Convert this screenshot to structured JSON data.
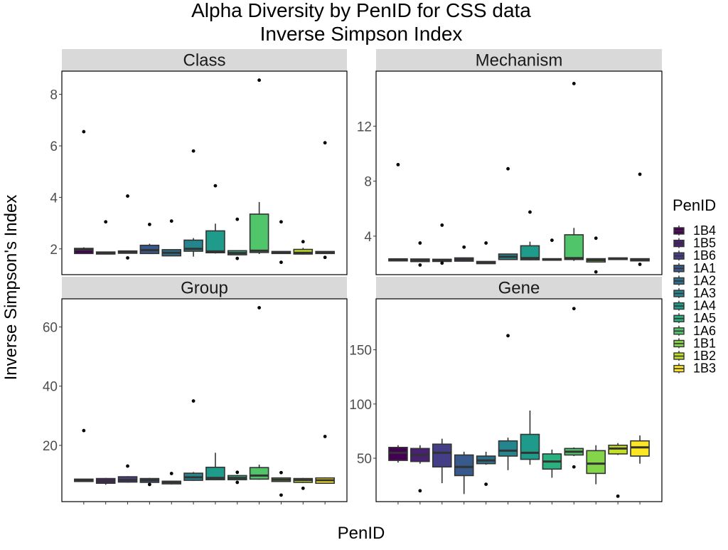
{
  "title_line1": "Alpha Diversity by PenID for CSS data",
  "title_line2": "Inverse Simpson Index",
  "xlabel": "PenID",
  "ylabel": "Inverse Simpson's Index",
  "legend_title": "PenID",
  "chart_data": {
    "type": "boxplot",
    "categories": [
      "1B4",
      "1B5",
      "1B6",
      "1A1",
      "1A2",
      "1A3",
      "1A4",
      "1A5",
      "1A6",
      "1B1",
      "1B2",
      "1B3"
    ],
    "colors": [
      "#440154",
      "#482173",
      "#433E85",
      "#38598C",
      "#2D708E",
      "#25858E",
      "#1E9B8A",
      "#2BB07F",
      "#51C56A",
      "#85D54A",
      "#C2DF23",
      "#FDE725"
    ],
    "legend_position": "right",
    "grid": false,
    "panels": [
      {
        "name": "Class",
        "ylim": [
          1.0,
          8.9
        ],
        "yticks": [
          2,
          4,
          6,
          8
        ],
        "boxes": [
          {
            "q1": 1.82,
            "median": 1.96,
            "q3": 2.02,
            "wlo": 1.8,
            "whi": 2.06,
            "outliers": [
              6.55
            ]
          },
          {
            "q1": 1.8,
            "median": 1.84,
            "q3": 1.88,
            "wlo": 1.79,
            "whi": 1.89,
            "outliers": [
              3.05
            ]
          },
          {
            "q1": 1.83,
            "median": 1.87,
            "q3": 1.92,
            "wlo": 1.82,
            "whi": 1.93,
            "outliers": [
              4.05,
              1.65
            ]
          },
          {
            "q1": 1.82,
            "median": 1.95,
            "q3": 2.14,
            "wlo": 1.8,
            "whi": 2.2,
            "outliers": [
              2.95
            ]
          },
          {
            "q1": 1.73,
            "median": 1.85,
            "q3": 1.97,
            "wlo": 1.72,
            "whi": 1.98,
            "outliers": [
              3.08
            ]
          },
          {
            "q1": 1.91,
            "median": 2.0,
            "q3": 2.34,
            "wlo": 1.7,
            "whi": 2.42,
            "outliers": [
              5.8
            ]
          },
          {
            "q1": 1.85,
            "median": 1.9,
            "q3": 2.7,
            "wlo": 1.82,
            "whi": 2.98,
            "outliers": [
              4.45
            ]
          },
          {
            "q1": 1.77,
            "median": 1.84,
            "q3": 1.93,
            "wlo": 1.76,
            "whi": 1.95,
            "outliers": [
              3.15,
              1.63
            ]
          },
          {
            "q1": 1.86,
            "median": 1.93,
            "q3": 3.35,
            "wlo": 1.8,
            "whi": 3.82,
            "outliers": [
              8.55
            ]
          },
          {
            "q1": 1.82,
            "median": 1.86,
            "q3": 1.9,
            "wlo": 1.81,
            "whi": 1.91,
            "outliers": [
              3.05,
              1.48
            ]
          },
          {
            "q1": 1.8,
            "median": 1.85,
            "q3": 1.98,
            "wlo": 1.78,
            "whi": 2.04,
            "outliers": [
              2.28
            ]
          },
          {
            "q1": 1.82,
            "median": 1.87,
            "q3": 1.9,
            "wlo": 1.81,
            "whi": 1.91,
            "outliers": [
              6.12,
              1.67
            ]
          }
        ]
      },
      {
        "name": "Mechanism",
        "ylim": [
          1.2,
          16.0
        ],
        "yticks": [
          4,
          8,
          12
        ],
        "boxes": [
          {
            "q1": 2.2,
            "median": 2.28,
            "q3": 2.35,
            "wlo": 2.18,
            "whi": 2.37,
            "outliers": [
              9.2
            ]
          },
          {
            "q1": 2.15,
            "median": 2.27,
            "q3": 2.34,
            "wlo": 2.13,
            "whi": 2.36,
            "outliers": [
              3.5,
              1.9
            ]
          },
          {
            "q1": 2.16,
            "median": 2.25,
            "q3": 2.32,
            "wlo": 2.13,
            "whi": 2.34,
            "outliers": [
              4.8,
              2.04
            ]
          },
          {
            "q1": 2.18,
            "median": 2.3,
            "q3": 2.42,
            "wlo": 2.15,
            "whi": 2.45,
            "outliers": [
              3.2
            ]
          },
          {
            "q1": 2.0,
            "median": 2.08,
            "q3": 2.16,
            "wlo": 1.98,
            "whi": 2.18,
            "outliers": [
              3.5
            ]
          },
          {
            "q1": 2.3,
            "median": 2.5,
            "q3": 2.7,
            "wlo": 2.28,
            "whi": 2.72,
            "outliers": [
              8.9
            ]
          },
          {
            "q1": 2.28,
            "median": 2.4,
            "q3": 3.3,
            "wlo": 2.24,
            "whi": 3.6,
            "outliers": [
              5.75
            ]
          },
          {
            "q1": 2.25,
            "median": 2.3,
            "q3": 2.36,
            "wlo": 2.22,
            "whi": 2.38,
            "outliers": [
              3.7
            ]
          },
          {
            "q1": 2.3,
            "median": 2.4,
            "q3": 4.1,
            "wlo": 2.2,
            "whi": 4.6,
            "outliers": [
              15.1
            ]
          },
          {
            "q1": 2.12,
            "median": 2.26,
            "q3": 2.36,
            "wlo": 2.1,
            "whi": 2.38,
            "outliers": [
              3.85,
              1.4
            ]
          },
          {
            "q1": 2.3,
            "median": 2.36,
            "q3": 2.42,
            "wlo": 2.28,
            "whi": 2.44,
            "outliers": []
          },
          {
            "q1": 2.2,
            "median": 2.28,
            "q3": 2.36,
            "wlo": 2.18,
            "whi": 2.38,
            "outliers": [
              8.5,
              1.95
            ]
          }
        ]
      },
      {
        "name": "Group",
        "ylim": [
          1.0,
          69.5
        ],
        "yticks": [
          20,
          40,
          60
        ],
        "boxes": [
          {
            "q1": 7.8,
            "median": 8.3,
            "q3": 8.6,
            "wlo": 7.7,
            "whi": 8.7,
            "outliers": [
              25.0
            ]
          },
          {
            "q1": 7.2,
            "median": 8.0,
            "q3": 8.8,
            "wlo": 6.7,
            "whi": 9.0,
            "outliers": []
          },
          {
            "q1": 7.6,
            "median": 8.3,
            "q3": 9.4,
            "wlo": 7.4,
            "whi": 9.6,
            "outliers": [
              13.0
            ]
          },
          {
            "q1": 7.5,
            "median": 8.2,
            "q3": 8.8,
            "wlo": 7.3,
            "whi": 9.0,
            "outliers": [
              6.8
            ]
          },
          {
            "q1": 7.0,
            "median": 7.6,
            "q3": 7.9,
            "wlo": 6.8,
            "whi": 8.0,
            "outliers": [
              10.5
            ]
          },
          {
            "q1": 8.2,
            "median": 9.2,
            "q3": 10.6,
            "wlo": 8.0,
            "whi": 11.0,
            "outliers": [
              35.0
            ]
          },
          {
            "q1": 8.4,
            "median": 9.0,
            "q3": 12.6,
            "wlo": 8.2,
            "whi": 17.5,
            "outliers": []
          },
          {
            "q1": 8.4,
            "median": 9.0,
            "q3": 9.8,
            "wlo": 8.2,
            "whi": 10.0,
            "outliers": [
              10.9,
              7.5
            ]
          },
          {
            "q1": 8.6,
            "median": 9.8,
            "q3": 12.5,
            "wlo": 8.4,
            "whi": 13.5,
            "outliers": [
              66.5
            ]
          },
          {
            "q1": 7.8,
            "median": 8.4,
            "q3": 9.0,
            "wlo": 7.6,
            "whi": 9.2,
            "outliers": [
              10.8,
              3.2
            ]
          },
          {
            "q1": 7.5,
            "median": 8.3,
            "q3": 8.8,
            "wlo": 7.3,
            "whi": 9.0,
            "outliers": [
              5.5
            ]
          },
          {
            "q1": 7.2,
            "median": 8.2,
            "q3": 9.0,
            "wlo": 7.0,
            "whi": 9.2,
            "outliers": [
              23.0
            ]
          }
        ]
      },
      {
        "name": "Gene",
        "ylim": [
          10,
          197
        ],
        "yticks": [
          50,
          100,
          150
        ],
        "boxes": [
          {
            "q1": 48,
            "median": 55,
            "q3": 60,
            "wlo": 46,
            "whi": 62,
            "outliers": []
          },
          {
            "q1": 47,
            "median": 53,
            "q3": 59,
            "wlo": 45,
            "whi": 62,
            "outliers": [
              20
            ]
          },
          {
            "q1": 42,
            "median": 55,
            "q3": 63,
            "wlo": 27,
            "whi": 68,
            "outliers": []
          },
          {
            "q1": 34,
            "median": 42,
            "q3": 53,
            "wlo": 17,
            "whi": 56,
            "outliers": []
          },
          {
            "q1": 45,
            "median": 48,
            "q3": 52,
            "wlo": 44,
            "whi": 56,
            "outliers": [
              26
            ]
          },
          {
            "q1": 52,
            "median": 57,
            "q3": 66,
            "wlo": 39,
            "whi": 69,
            "outliers": [
              163
            ]
          },
          {
            "q1": 49,
            "median": 55,
            "q3": 72,
            "wlo": 44,
            "whi": 94,
            "outliers": []
          },
          {
            "q1": 40,
            "median": 47,
            "q3": 54,
            "wlo": 32,
            "whi": 58,
            "outliers": []
          },
          {
            "q1": 53,
            "median": 56,
            "q3": 59,
            "wlo": 52,
            "whi": 60,
            "outliers": [
              188,
              42
            ]
          },
          {
            "q1": 36,
            "median": 45,
            "q3": 57,
            "wlo": 26,
            "whi": 62,
            "outliers": []
          },
          {
            "q1": 54,
            "median": 59,
            "q3": 62,
            "wlo": 53,
            "whi": 64,
            "outliers": [
              15
            ]
          },
          {
            "q1": 52,
            "median": 60,
            "q3": 66,
            "wlo": 45,
            "whi": 71,
            "outliers": []
          }
        ]
      }
    ]
  }
}
